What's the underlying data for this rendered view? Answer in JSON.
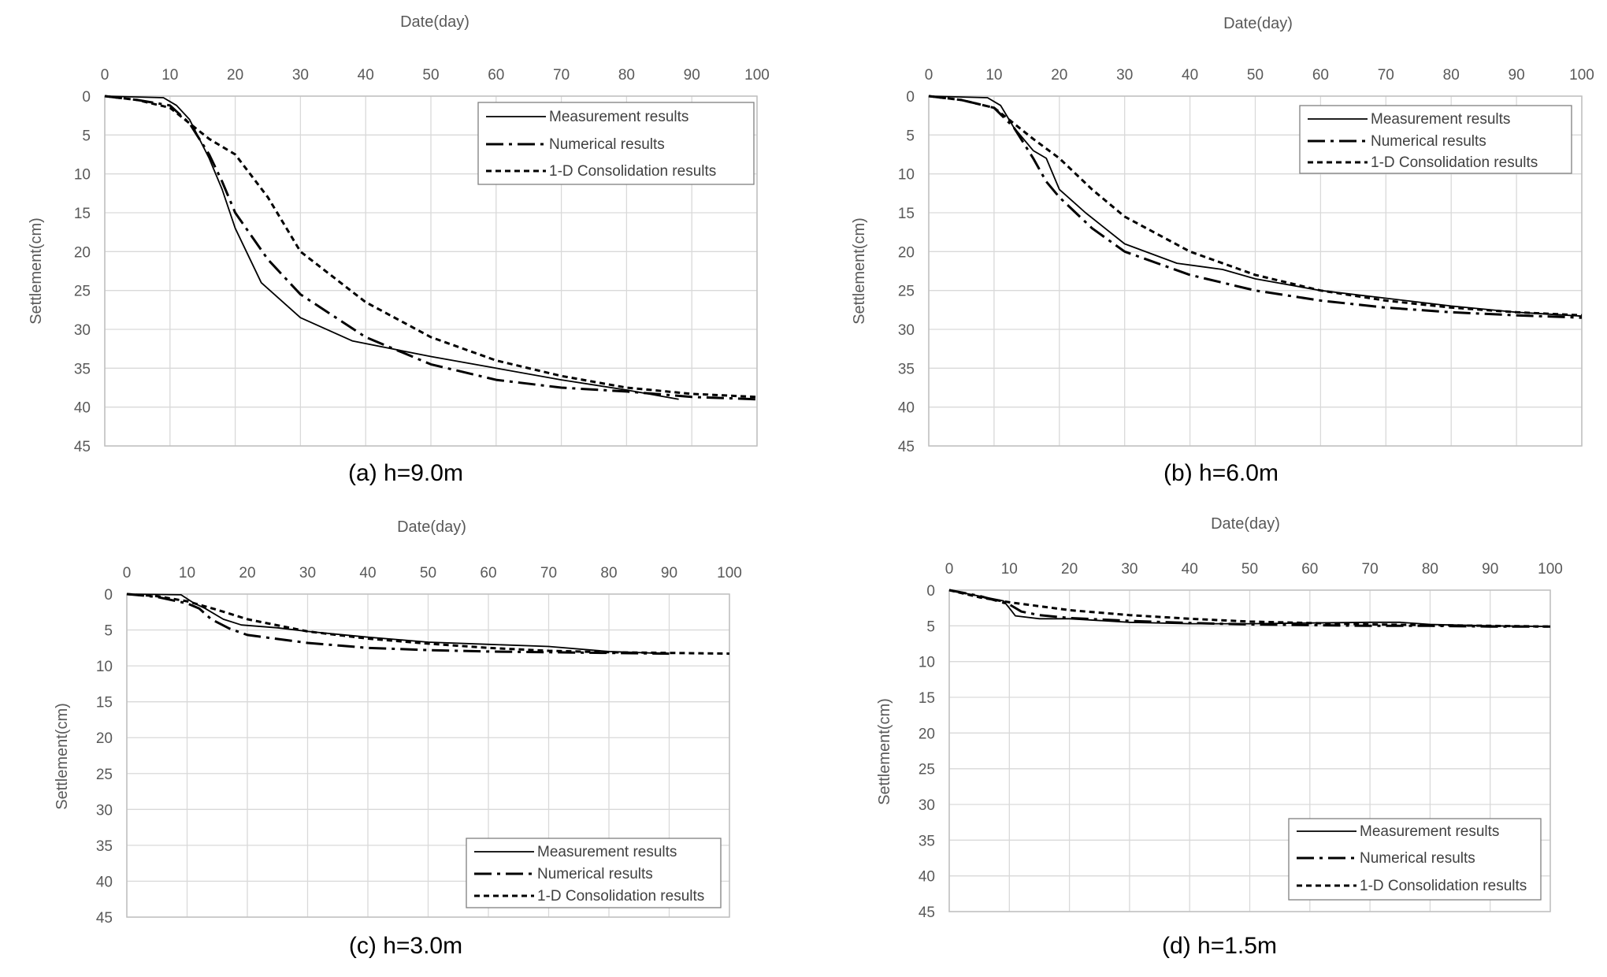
{
  "chart_data": [
    {
      "type": "line",
      "caption": "(a) h=9.0m",
      "xlabel": "Date(day)",
      "ylabel": "Settlement(cm)",
      "xlim": [
        0,
        100
      ],
      "ylim": [
        0,
        45
      ],
      "y_inverted": true,
      "x_ticks": [
        0,
        10,
        20,
        30,
        40,
        50,
        60,
        70,
        80,
        90,
        100
      ],
      "y_ticks": [
        0,
        5,
        10,
        15,
        20,
        25,
        30,
        35,
        40,
        45
      ],
      "legend_position": "top-right",
      "series": [
        {
          "name": "Measurement results",
          "style": "solid",
          "x": [
            0,
            9,
            11,
            13,
            16,
            18,
            20,
            24,
            30,
            38,
            50,
            60,
            70,
            80,
            88
          ],
          "y": [
            0,
            0.2,
            1.2,
            3,
            8,
            12,
            17,
            24,
            28.5,
            31.5,
            33.5,
            35,
            36.5,
            37.8,
            39
          ]
        },
        {
          "name": "Numerical results",
          "style": "dashdot",
          "x": [
            0,
            5,
            10,
            13,
            16,
            18,
            20,
            25,
            30,
            40,
            50,
            60,
            70,
            80,
            90,
            100
          ],
          "y": [
            0,
            0.5,
            1.2,
            3.5,
            7.5,
            11,
            15,
            21,
            25.5,
            31,
            34.5,
            36.5,
            37.5,
            38,
            38.7,
            39
          ]
        },
        {
          "name": "1-D Consolidation results",
          "style": "dashed",
          "x": [
            0,
            5,
            10,
            13,
            16,
            20,
            25,
            30,
            40,
            50,
            60,
            70,
            80,
            90,
            100
          ],
          "y": [
            0,
            0.5,
            1.5,
            3.5,
            5.5,
            7.5,
            13,
            20,
            26.5,
            31,
            34,
            36,
            37.5,
            38.3,
            38.7
          ]
        }
      ]
    },
    {
      "type": "line",
      "caption": "(b) h=6.0m",
      "xlabel": "Date(day)",
      "ylabel": "Settlement(cm)",
      "xlim": [
        0,
        100
      ],
      "ylim": [
        0,
        45
      ],
      "y_inverted": true,
      "x_ticks": [
        0,
        10,
        20,
        30,
        40,
        50,
        60,
        70,
        80,
        90,
        100
      ],
      "y_ticks": [
        0,
        5,
        10,
        15,
        20,
        25,
        30,
        35,
        40,
        45
      ],
      "legend_position": "top-right",
      "series": [
        {
          "name": "Measurement results",
          "style": "solid",
          "x": [
            0,
            9,
            11,
            13,
            16,
            18,
            20,
            24,
            30,
            38,
            45,
            50,
            60,
            70,
            80,
            90,
            100
          ],
          "y": [
            0,
            0.2,
            1.2,
            4,
            7,
            8,
            12,
            15,
            19,
            21.5,
            22.3,
            23.5,
            25,
            26,
            27,
            27.8,
            28.3
          ]
        },
        {
          "name": "Numerical results",
          "style": "dashdot",
          "x": [
            0,
            5,
            10,
            13,
            16,
            18,
            20,
            25,
            30,
            40,
            50,
            60,
            70,
            80,
            90,
            100
          ],
          "y": [
            0,
            0.5,
            1.5,
            4,
            8,
            11,
            13,
            17,
            20,
            23,
            25,
            26.3,
            27.2,
            27.8,
            28.2,
            28.5
          ]
        },
        {
          "name": "1-D Consolidation results",
          "style": "dashed",
          "x": [
            0,
            5,
            10,
            13,
            16,
            20,
            25,
            30,
            40,
            50,
            60,
            70,
            80,
            90,
            100
          ],
          "y": [
            0,
            0.5,
            1.5,
            3.5,
            5.5,
            8,
            12,
            15.5,
            20,
            23,
            25,
            26.3,
            27.2,
            27.8,
            28.2
          ]
        }
      ]
    },
    {
      "type": "line",
      "caption": "(c) h=3.0m",
      "xlabel": "Date(day)",
      "ylabel": "Settlement(cm)",
      "xlim": [
        0,
        100
      ],
      "ylim": [
        0,
        45
      ],
      "y_inverted": true,
      "x_ticks": [
        0,
        10,
        20,
        30,
        40,
        50,
        60,
        70,
        80,
        90,
        100
      ],
      "y_ticks": [
        0,
        5,
        10,
        15,
        20,
        25,
        30,
        35,
        40,
        45
      ],
      "legend_position": "bottom-right",
      "series": [
        {
          "name": "Measurement results",
          "style": "solid",
          "x": [
            0,
            9,
            11,
            13,
            16,
            19,
            25,
            30,
            40,
            50,
            60,
            70,
            80,
            90
          ],
          "y": [
            0,
            0.1,
            1.2,
            2,
            3.5,
            4.3,
            4.7,
            5.2,
            6,
            6.7,
            7,
            7.3,
            8,
            8.3
          ]
        },
        {
          "name": "Numerical results",
          "style": "dashdot",
          "x": [
            0,
            5,
            10,
            12,
            14,
            17,
            20,
            30,
            40,
            50,
            60,
            70,
            80,
            90
          ],
          "y": [
            0,
            0.4,
            1.3,
            2,
            3.5,
            4.8,
            5.7,
            6.8,
            7.5,
            7.8,
            8,
            8.1,
            8.2,
            8.3
          ]
        },
        {
          "name": "1-D Consolidation results",
          "style": "dashed",
          "x": [
            0,
            5,
            10,
            15,
            20,
            30,
            40,
            50,
            60,
            70,
            80,
            90,
            100
          ],
          "y": [
            0,
            0.3,
            1,
            2.2,
            3.5,
            5.2,
            6.2,
            6.9,
            7.5,
            7.9,
            8.1,
            8.2,
            8.3
          ]
        }
      ]
    },
    {
      "type": "line",
      "caption": "(d) h=1.5m",
      "xlabel": "Date(day)",
      "ylabel": "Settlement(cm)",
      "xlim": [
        0,
        100
      ],
      "ylim": [
        0,
        45
      ],
      "y_inverted": true,
      "x_ticks": [
        0,
        10,
        20,
        30,
        40,
        50,
        60,
        70,
        80,
        90,
        100
      ],
      "y_ticks": [
        0,
        5,
        10,
        15,
        20,
        25,
        30,
        35,
        40,
        45
      ],
      "legend_position": "bottom-right",
      "series": [
        {
          "name": "Measurement results",
          "style": "solid",
          "x": [
            0,
            9,
            10,
            11,
            15,
            20,
            30,
            40,
            50,
            60,
            70,
            75,
            80,
            90,
            100
          ],
          "y": [
            0,
            1.5,
            2.5,
            3.6,
            4,
            4,
            4.5,
            4.7,
            4.7,
            4.6,
            4.5,
            4.5,
            4.8,
            5,
            5.1
          ]
        },
        {
          "name": "Numerical results",
          "style": "dashdot",
          "x": [
            0,
            5,
            10,
            12,
            15,
            20,
            30,
            40,
            50,
            60,
            70,
            80,
            90,
            100
          ],
          "y": [
            0,
            0.8,
            2,
            3,
            3.5,
            3.9,
            4.3,
            4.6,
            4.8,
            4.9,
            5,
            5,
            5.1,
            5.1
          ]
        },
        {
          "name": "1-D Consolidation results",
          "style": "dashed",
          "x": [
            0,
            5,
            10,
            20,
            30,
            40,
            50,
            60,
            70,
            80,
            90,
            100
          ],
          "y": [
            0,
            1,
            1.7,
            2.8,
            3.5,
            4,
            4.4,
            4.6,
            4.8,
            4.9,
            5,
            5.1
          ]
        }
      ]
    }
  ]
}
